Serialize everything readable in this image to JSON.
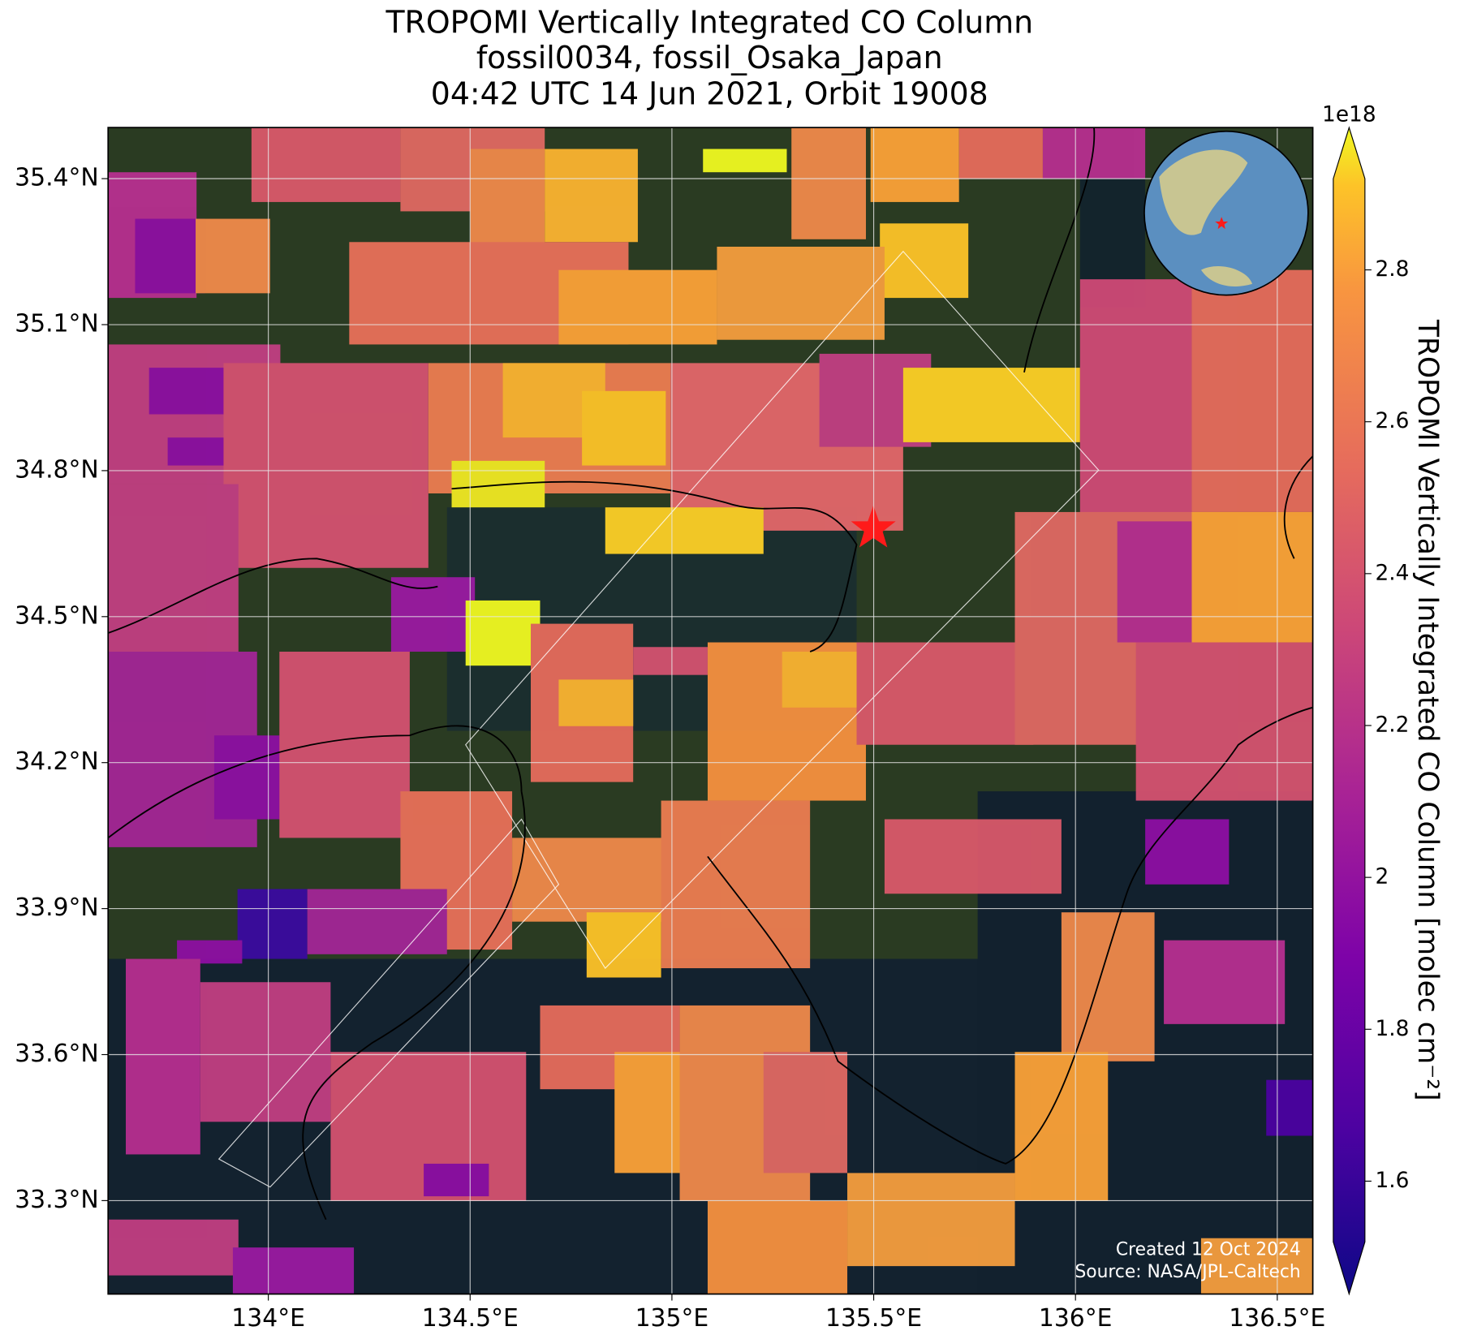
{
  "title": [
    "TROPOMI Vertically Integrated CO Column",
    "fossil0034, fossil_Osaka_Japan",
    "04:42 UTC 14 Jun 2021, Orbit 19008"
  ],
  "map": {
    "xlim": [
      133.603,
      136.588
    ],
    "ylim": [
      33.108,
      35.505
    ],
    "xticks": [
      {
        "value": 134,
        "label": "134°E"
      },
      {
        "value": 134.5,
        "label": "134.5°E"
      },
      {
        "value": 135,
        "label": "135°E"
      },
      {
        "value": 135.5,
        "label": "135.5°E"
      },
      {
        "value": 136,
        "label": "136°E"
      },
      {
        "value": 136.5,
        "label": "136.5°E"
      }
    ],
    "yticks": [
      {
        "value": 33.3,
        "label": "33.3°N"
      },
      {
        "value": 33.6,
        "label": "33.6°N"
      },
      {
        "value": 33.9,
        "label": "33.9°N"
      },
      {
        "value": 34.2,
        "label": "34.2°N"
      },
      {
        "value": 34.5,
        "label": "34.5°N"
      },
      {
        "value": 34.8,
        "label": "34.8°N"
      },
      {
        "value": 35.1,
        "label": "35.1°N"
      },
      {
        "value": 35.4,
        "label": "35.4°N"
      }
    ],
    "grid": true
  },
  "colorbar": {
    "label": "TROPOMI Vertically Integrated CO Column [molec cm⁻²]",
    "exponent": "1e18",
    "lim": [
      1.52,
      2.92
    ],
    "ticks": [
      1.6,
      1.8,
      2.0,
      2.2,
      2.4,
      2.6,
      2.8
    ],
    "colormap": "plasma"
  },
  "credits": [
    "Created 12 Oct 2024",
    "Source: NASA/JPL-Caltech"
  ]
}
